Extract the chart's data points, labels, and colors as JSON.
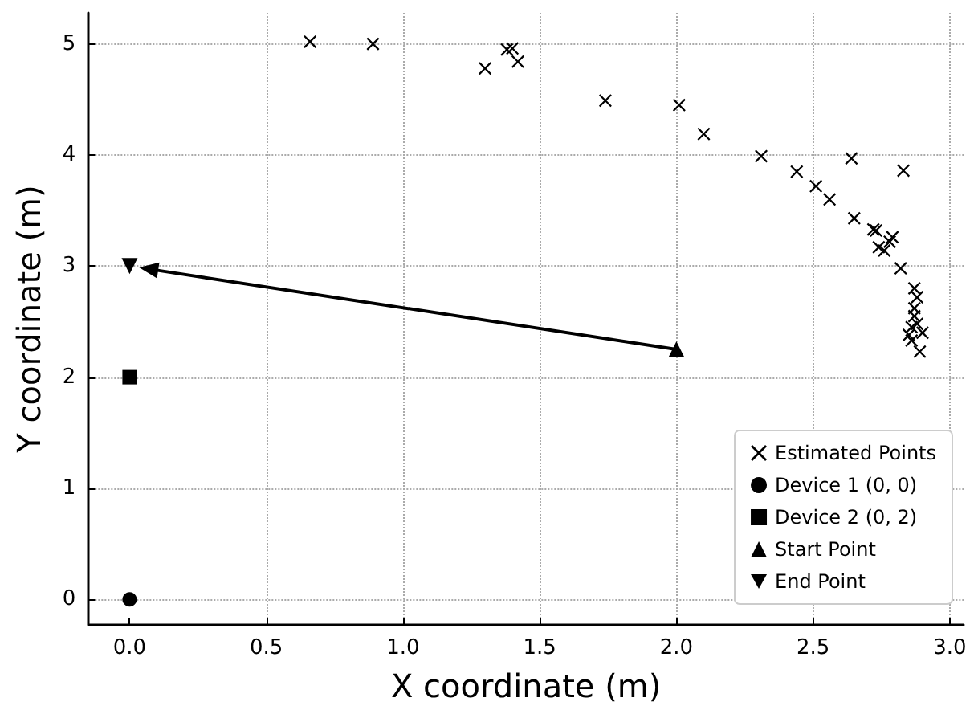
{
  "chart_data": {
    "type": "scatter",
    "xlabel": "X coordinate (m)",
    "ylabel": "Y coordinate (m)",
    "xlim": [
      -0.15,
      3.05
    ],
    "xticks": [
      {
        "value": 0,
        "label": "0.0"
      },
      {
        "value": 0.5,
        "label": "0.5"
      },
      {
        "value": 1,
        "label": "1.0"
      },
      {
        "value": 1.5,
        "label": "1.5"
      },
      {
        "value": 2,
        "label": "2.0"
      },
      {
        "value": 2.5,
        "label": "2.5"
      },
      {
        "value": 3,
        "label": "3.0"
      }
    ],
    "ylim": [
      -0.23,
      5.28
    ],
    "yticks": [
      0,
      1,
      2,
      3,
      4,
      5
    ],
    "grid": true,
    "legend": "bottom right",
    "series": [
      {
        "name": "Estimated Points",
        "color": "#000000",
        "marker": "cross",
        "x": [
          0.66,
          0.89,
          1.3,
          1.38,
          1.4,
          1.42,
          1.74,
          2.01,
          2.1,
          2.31,
          2.44,
          2.51,
          2.56,
          2.64,
          2.65,
          2.72,
          2.73,
          2.74,
          2.76,
          2.78,
          2.79,
          2.82,
          2.83,
          2.87,
          2.88,
          2.87,
          2.87,
          2.88,
          2.85,
          2.86,
          2.9,
          2.89,
          2.86
        ],
        "values": [
          5.02,
          5.0,
          4.78,
          4.95,
          4.96,
          4.84,
          4.49,
          4.45,
          4.19,
          3.99,
          3.85,
          3.72,
          3.6,
          3.97,
          3.43,
          3.33,
          3.32,
          3.17,
          3.14,
          3.22,
          3.26,
          2.98,
          3.86,
          2.8,
          2.72,
          2.62,
          2.55,
          2.48,
          2.38,
          2.33,
          2.4,
          2.23,
          2.45
        ]
      },
      {
        "name": "Device 1 (0, 0)",
        "color": "#000000",
        "marker": "circle",
        "x": [
          0
        ],
        "values": [
          0
        ]
      },
      {
        "name": "Device 2 (0, 2)",
        "color": "#000000",
        "marker": "square",
        "x": [
          0
        ],
        "values": [
          2
        ]
      },
      {
        "name": "Start Point",
        "color": "#000000",
        "marker": "triangle",
        "x": [
          2.0
        ],
        "values": [
          2.25
        ]
      },
      {
        "name": "End Point",
        "color": "#000000",
        "marker": "triangle-down",
        "x": [
          0
        ],
        "values": [
          3
        ]
      }
    ]
  }
}
